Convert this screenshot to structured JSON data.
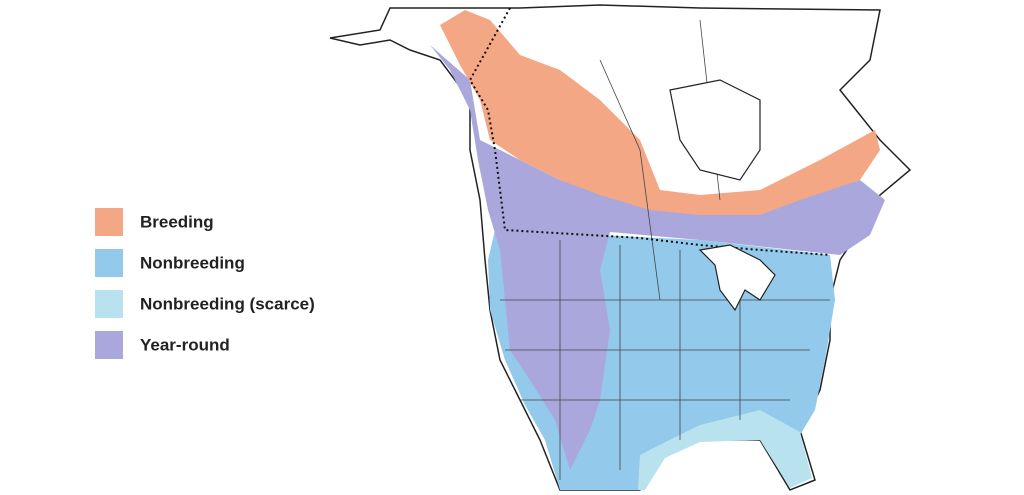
{
  "legend": {
    "items": [
      {
        "label": "Breeding",
        "color": "#f4a784"
      },
      {
        "label": "Nonbreeding",
        "color": "#93c9ea"
      },
      {
        "label": "Nonbreeding (scarce)",
        "color": "#b8e3ee"
      },
      {
        "label": "Year-round",
        "color": "#aaa7dc"
      }
    ]
  }
}
